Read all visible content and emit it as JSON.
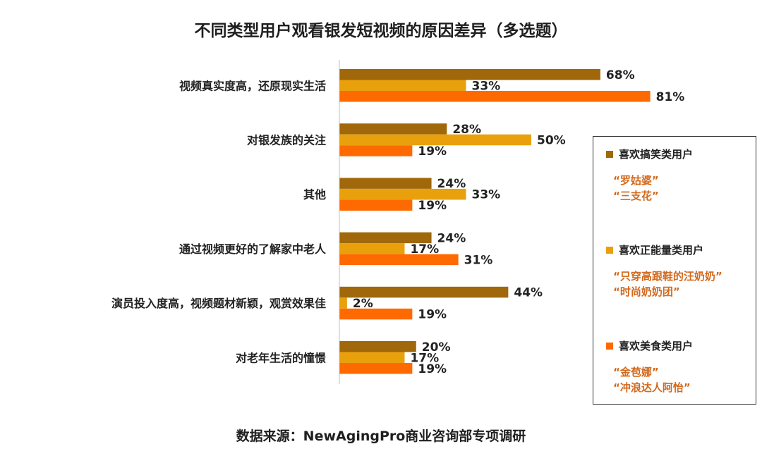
{
  "title": "不同类型用户观看银发短视频的原因差异（多选题）",
  "source": "数据来源：NewAgingPro商业咨询部专项调研",
  "chart_data": {
    "type": "bar",
    "orientation": "horizontal",
    "title": "不同类型用户观看银发短视频的原因差异（多选题）",
    "categories": [
      "视频真实度高，还原现实生活",
      "对银发族的关注",
      "其他",
      "通过视频更好的了解家中老人",
      "演员投入度高，视频题材新颖，观赏效果佳",
      "对老年生活的憧憬"
    ],
    "series": [
      {
        "name": "喜欢搞笑类用户",
        "color": "#a0680a",
        "values": [
          68,
          28,
          24,
          24,
          44,
          20
        ],
        "labels": [
          "68%",
          "28%",
          "24%",
          "24%",
          "44%",
          "20%"
        ]
      },
      {
        "name": "喜欢正能量类用户",
        "color": "#e8a10c",
        "values": [
          33,
          50,
          33,
          17,
          2,
          17
        ],
        "labels": [
          "33%",
          "50%",
          "33%",
          "17%",
          "2%",
          "17%"
        ]
      },
      {
        "name": "喜欢美食类用户",
        "color": "#ff6a00",
        "values": [
          81,
          19,
          19,
          31,
          19,
          19
        ],
        "labels": [
          "81%",
          "19%",
          "19%",
          "31%",
          "19%",
          "19%"
        ]
      }
    ],
    "xlim": [
      0,
      100
    ],
    "grid": false,
    "legend_position": "right"
  },
  "legend": [
    {
      "name": "喜欢搞笑类用户",
      "color": "#a0680a",
      "examples": [
        "“罗姑婆”",
        "“三支花”"
      ]
    },
    {
      "name": "喜欢正能量类用户",
      "color": "#e8a10c",
      "examples": [
        "“只穿高跟鞋的汪奶奶”",
        "“时尚奶奶团”"
      ]
    },
    {
      "name": "喜欢美食类用户",
      "color": "#ff6a00",
      "examples": [
        "“金苞娜”",
        "“冲浪达人阿怡”"
      ]
    }
  ]
}
